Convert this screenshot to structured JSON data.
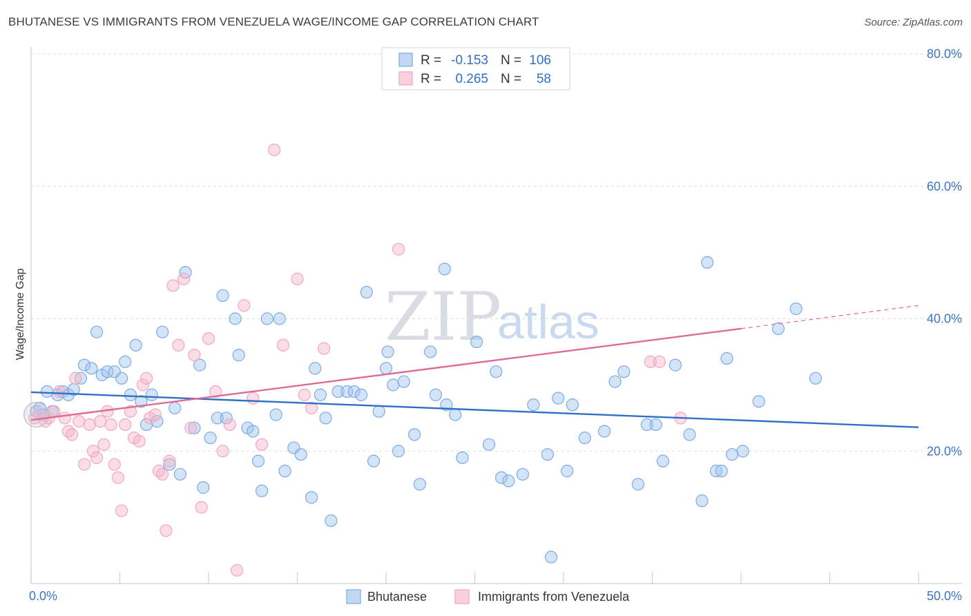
{
  "title": "BHUTANESE VS IMMIGRANTS FROM VENEZUELA WAGE/INCOME GAP CORRELATION CHART",
  "source": "Source: ZipAtlas.com",
  "watermark": {
    "zip": "ZIP",
    "atlas": "atlas"
  },
  "chart_data": {
    "type": "scatter",
    "title": "BHUTANESE VS IMMIGRANTS FROM VENEZUELA WAGE/INCOME GAP CORRELATION CHART",
    "xlabel": "",
    "ylabel": "Wage/Income Gap",
    "xlim": [
      0,
      50
    ],
    "ylim": [
      0,
      80
    ],
    "x_tick_labels": [
      "0.0%",
      "50.0%"
    ],
    "y_ticks": [
      20,
      40,
      60,
      80
    ],
    "y_tick_labels": [
      "20.0%",
      "40.0%",
      "60.0%",
      "80.0%"
    ],
    "grid": true,
    "legend": {
      "placement": "top-center",
      "entries": [
        {
          "r_label": "R =",
          "r_value": "-0.153",
          "n_label": "N =",
          "n_value": "106"
        },
        {
          "r_label": "R =",
          "r_value": "0.265",
          "n_label": "N =",
          "n_value": "58"
        }
      ]
    },
    "series": [
      {
        "name": "Bhutanese",
        "color": "#7aaae8",
        "line_color": "#2f6fc6",
        "trend": {
          "x": [
            0,
            50
          ],
          "y": [
            28.9,
            23.6
          ]
        },
        "points": [
          [
            0.3,
            26.0
          ],
          [
            0.5,
            26.5
          ],
          [
            0.7,
            25.5
          ],
          [
            0.9,
            29.0
          ],
          [
            1.2,
            26.0
          ],
          [
            1.5,
            28.5
          ],
          [
            1.8,
            29.0
          ],
          [
            2.1,
            28.5
          ],
          [
            2.4,
            29.3
          ],
          [
            2.8,
            31.0
          ],
          [
            3.0,
            33.0
          ],
          [
            3.4,
            32.5
          ],
          [
            3.7,
            38.0
          ],
          [
            4.0,
            31.5
          ],
          [
            4.3,
            32.0
          ],
          [
            4.7,
            32.0
          ],
          [
            5.1,
            31.0
          ],
          [
            5.3,
            33.5
          ],
          [
            5.6,
            28.5
          ],
          [
            5.9,
            36.0
          ],
          [
            6.2,
            27.5
          ],
          [
            6.5,
            24.0
          ],
          [
            6.8,
            28.5
          ],
          [
            7.1,
            24.5
          ],
          [
            7.4,
            38.0
          ],
          [
            7.8,
            18.0
          ],
          [
            8.1,
            26.5
          ],
          [
            8.4,
            16.5
          ],
          [
            8.7,
            47.0
          ],
          [
            9.2,
            23.5
          ],
          [
            9.5,
            33.0
          ],
          [
            9.7,
            14.5
          ],
          [
            10.1,
            22.0
          ],
          [
            10.5,
            25.0
          ],
          [
            10.8,
            43.5
          ],
          [
            11.0,
            25.0
          ],
          [
            11.5,
            40.0
          ],
          [
            11.7,
            34.5
          ],
          [
            12.2,
            23.5
          ],
          [
            12.5,
            23.0
          ],
          [
            12.8,
            18.5
          ],
          [
            13.0,
            14.0
          ],
          [
            13.3,
            40.0
          ],
          [
            13.8,
            25.5
          ],
          [
            14.0,
            40.0
          ],
          [
            14.3,
            17.0
          ],
          [
            14.8,
            20.5
          ],
          [
            15.2,
            19.5
          ],
          [
            15.8,
            13.0
          ],
          [
            16.0,
            32.5
          ],
          [
            16.3,
            28.5
          ],
          [
            16.6,
            25.0
          ],
          [
            16.9,
            9.5
          ],
          [
            17.3,
            29.0
          ],
          [
            17.8,
            29.0
          ],
          [
            18.2,
            29.0
          ],
          [
            18.6,
            28.5
          ],
          [
            18.9,
            44.0
          ],
          [
            19.3,
            18.5
          ],
          [
            19.6,
            26.0
          ],
          [
            20.0,
            32.5
          ],
          [
            20.1,
            35.0
          ],
          [
            20.4,
            30.0
          ],
          [
            20.7,
            20.0
          ],
          [
            21.0,
            30.5
          ],
          [
            21.6,
            22.5
          ],
          [
            21.9,
            15.0
          ],
          [
            22.5,
            35.0
          ],
          [
            22.8,
            28.5
          ],
          [
            23.3,
            47.5
          ],
          [
            23.4,
            27.0
          ],
          [
            23.9,
            25.5
          ],
          [
            24.3,
            19.0
          ],
          [
            25.1,
            36.5
          ],
          [
            25.8,
            21.0
          ],
          [
            26.2,
            32.0
          ],
          [
            26.5,
            16.0
          ],
          [
            26.9,
            15.5
          ],
          [
            27.7,
            16.5
          ],
          [
            28.3,
            27.0
          ],
          [
            29.1,
            19.5
          ],
          [
            29.7,
            28.0
          ],
          [
            30.2,
            17.0
          ],
          [
            30.5,
            27.0
          ],
          [
            31.2,
            22.0
          ],
          [
            32.3,
            23.0
          ],
          [
            32.9,
            30.5
          ],
          [
            33.4,
            32.0
          ],
          [
            34.2,
            15.0
          ],
          [
            34.7,
            24.0
          ],
          [
            35.2,
            24.0
          ],
          [
            35.6,
            18.5
          ],
          [
            36.3,
            33.0
          ],
          [
            37.1,
            22.5
          ],
          [
            37.8,
            12.5
          ],
          [
            38.1,
            48.5
          ],
          [
            38.6,
            17.0
          ],
          [
            38.9,
            17.0
          ],
          [
            39.2,
            34.0
          ],
          [
            39.5,
            19.5
          ],
          [
            40.1,
            20.0
          ],
          [
            41.0,
            27.5
          ],
          [
            42.1,
            38.5
          ],
          [
            43.1,
            41.5
          ],
          [
            44.2,
            31.0
          ],
          [
            29.3,
            4.0
          ]
        ]
      },
      {
        "name": "Immigrants from Venezuela",
        "color": "#f2a6bf",
        "line_color": "#e06a93",
        "trend": {
          "x": [
            0,
            40
          ],
          "y": [
            24.7,
            38.5
          ]
        },
        "trend_dashed": {
          "x": [
            40,
            50
          ],
          "y": [
            38.5,
            42.0
          ]
        },
        "points": [
          [
            0.2,
            25.0
          ],
          [
            0.5,
            25.5
          ],
          [
            0.8,
            24.5
          ],
          [
            1.0,
            25.0
          ],
          [
            1.3,
            26.0
          ],
          [
            1.6,
            29.0
          ],
          [
            1.9,
            25.0
          ],
          [
            2.1,
            23.0
          ],
          [
            2.3,
            22.5
          ],
          [
            2.5,
            31.0
          ],
          [
            2.7,
            24.5
          ],
          [
            3.0,
            18.0
          ],
          [
            3.3,
            24.0
          ],
          [
            3.5,
            20.0
          ],
          [
            3.7,
            19.0
          ],
          [
            3.9,
            24.5
          ],
          [
            4.1,
            21.0
          ],
          [
            4.3,
            26.0
          ],
          [
            4.5,
            24.0
          ],
          [
            4.7,
            18.0
          ],
          [
            4.9,
            16.0
          ],
          [
            5.1,
            11.0
          ],
          [
            5.3,
            24.0
          ],
          [
            5.6,
            26.0
          ],
          [
            5.8,
            22.0
          ],
          [
            6.1,
            21.5
          ],
          [
            6.3,
            30.0
          ],
          [
            6.5,
            31.0
          ],
          [
            6.7,
            25.0
          ],
          [
            7.0,
            25.5
          ],
          [
            7.2,
            17.0
          ],
          [
            7.4,
            16.5
          ],
          [
            7.6,
            8.0
          ],
          [
            7.8,
            18.5
          ],
          [
            8.0,
            45.0
          ],
          [
            8.3,
            36.0
          ],
          [
            8.6,
            46.0
          ],
          [
            9.0,
            23.5
          ],
          [
            9.2,
            34.5
          ],
          [
            9.6,
            11.5
          ],
          [
            10.0,
            37.0
          ],
          [
            10.4,
            29.0
          ],
          [
            10.8,
            20.0
          ],
          [
            11.2,
            24.0
          ],
          [
            11.6,
            2.0
          ],
          [
            12.0,
            42.0
          ],
          [
            12.5,
            28.0
          ],
          [
            13.0,
            21.0
          ],
          [
            13.7,
            65.5
          ],
          [
            14.2,
            36.0
          ],
          [
            15.0,
            46.0
          ],
          [
            15.4,
            28.5
          ],
          [
            15.8,
            26.5
          ],
          [
            16.5,
            35.5
          ],
          [
            20.7,
            50.5
          ],
          [
            34.9,
            33.5
          ],
          [
            35.4,
            33.5
          ],
          [
            36.6,
            25.0
          ]
        ]
      }
    ]
  }
}
